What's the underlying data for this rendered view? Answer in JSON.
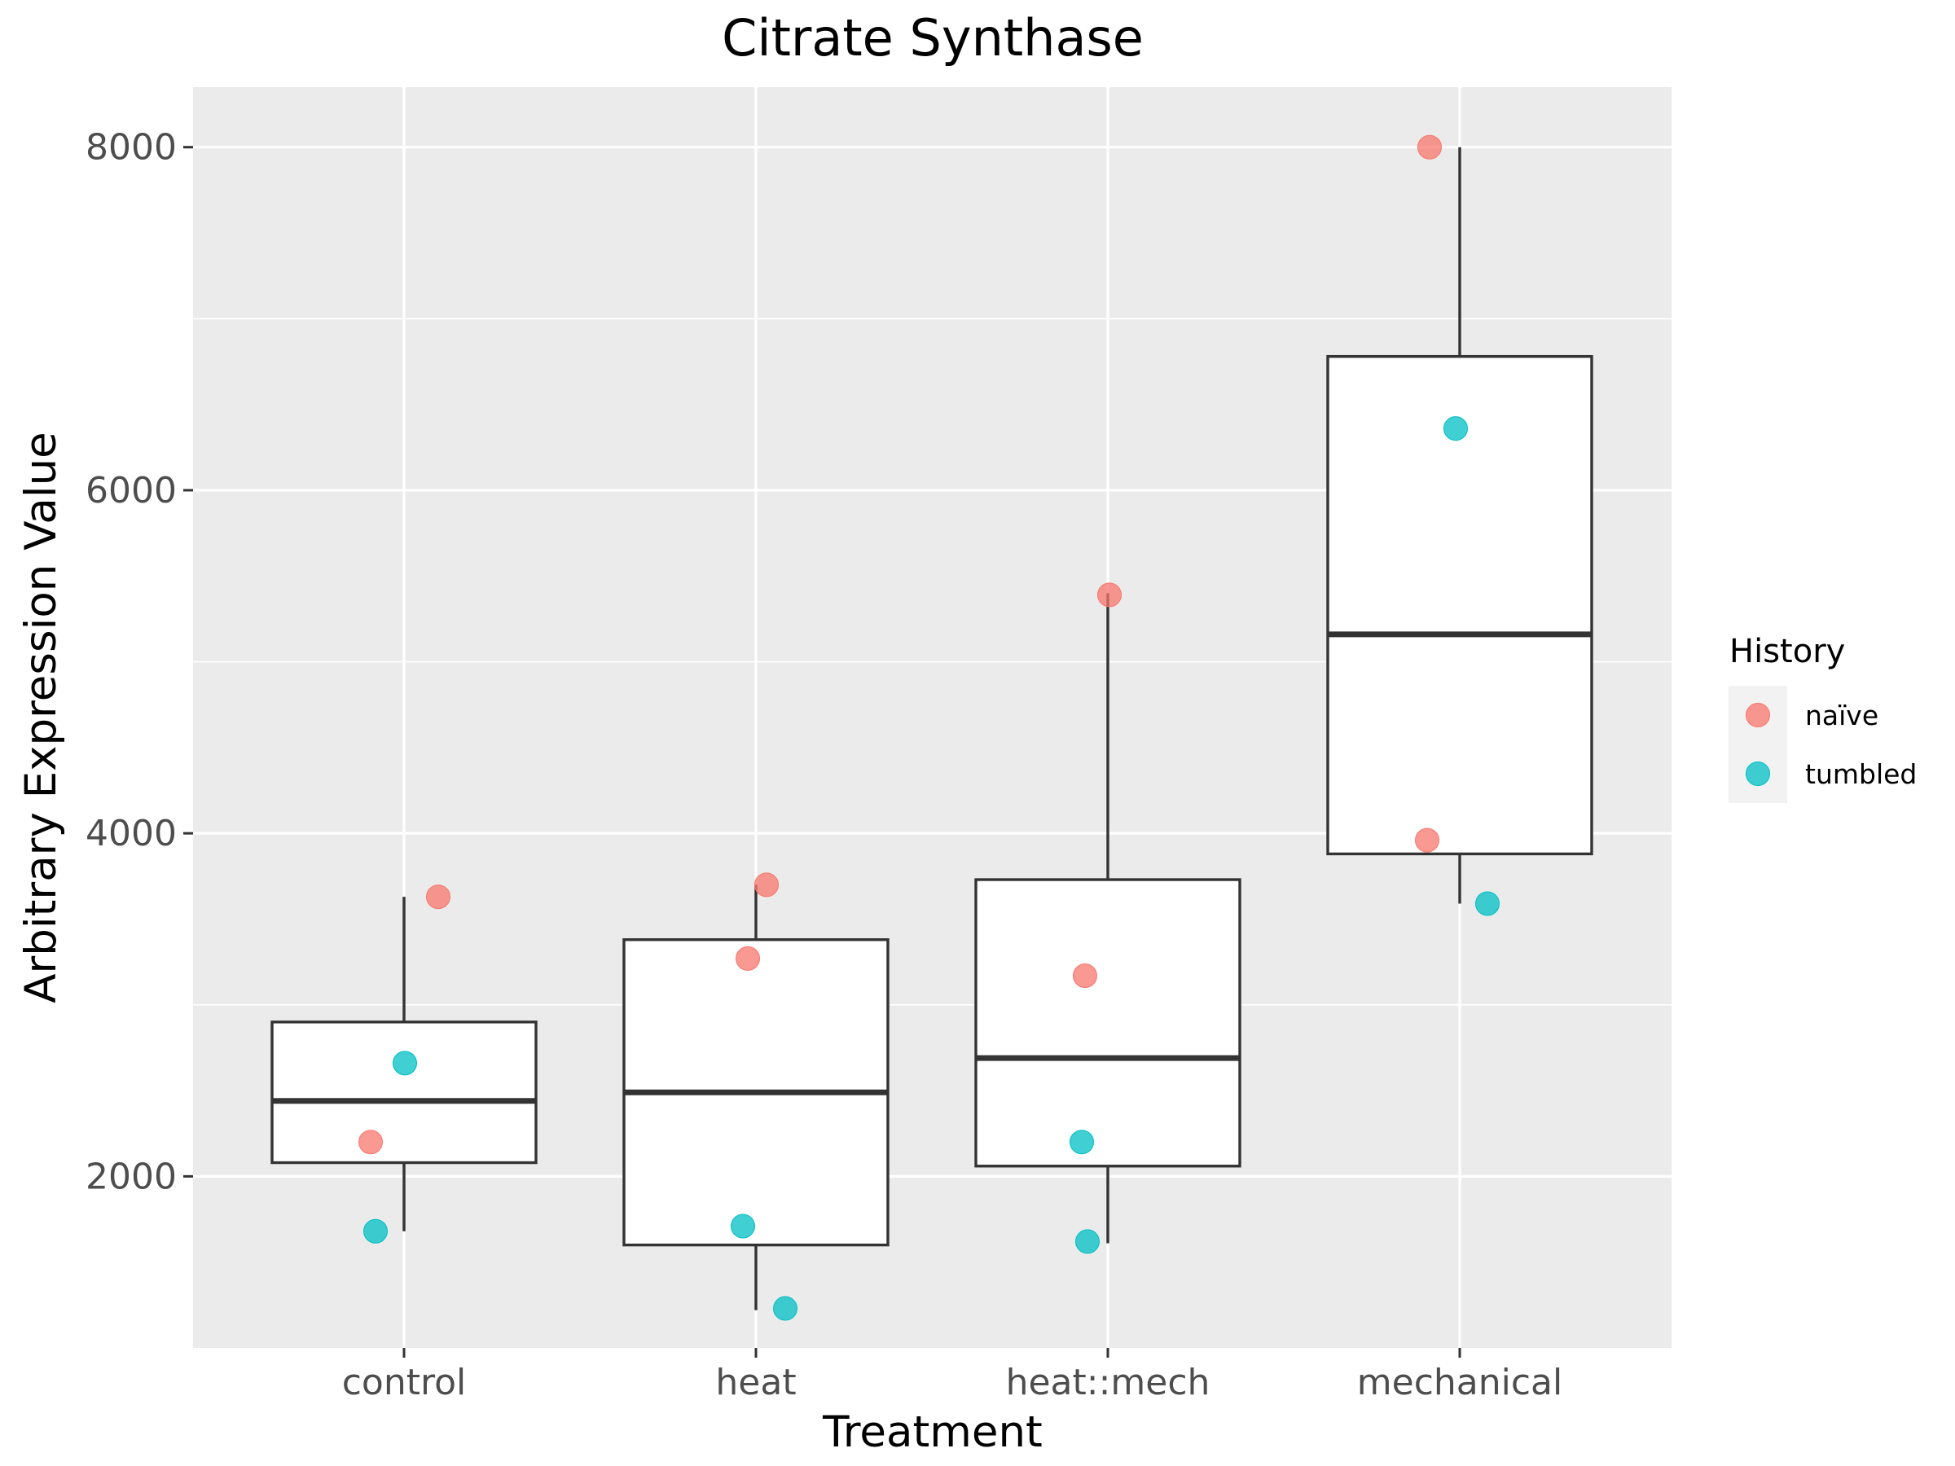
{
  "chart_data": {
    "type": "box",
    "title": "Citrate Synthase",
    "xlabel": "Treatment",
    "ylabel": "Arbitrary Expression Value",
    "categories": [
      "control",
      "heat",
      "heat::mech",
      "mechanical"
    ],
    "ylim": [
      1000,
      8350
    ],
    "yticks": [
      2000,
      4000,
      6000,
      8000
    ],
    "grid": true,
    "boxes": [
      {
        "category": "control",
        "whisker_low": 1680,
        "q1": 2080,
        "median": 2440,
        "q3": 2900,
        "whisker_high": 3630
      },
      {
        "category": "heat",
        "whisker_low": 1220,
        "q1": 1600,
        "median": 2490,
        "q3": 3380,
        "whisker_high": 3700
      },
      {
        "category": "heat::mech",
        "whisker_low": 1610,
        "q1": 2060,
        "median": 2690,
        "q3": 3730,
        "whisker_high": 5400
      },
      {
        "category": "mechanical",
        "whisker_low": 3590,
        "q1": 3880,
        "median": 5160,
        "q3": 6780,
        "whisker_high": 8000
      }
    ],
    "series": [
      {
        "name": "naïve",
        "color": "#F8766D",
        "points": [
          {
            "category": "control",
            "y": 3630
          },
          {
            "category": "control",
            "y": 2200
          },
          {
            "category": "heat",
            "y": 3700
          },
          {
            "category": "heat",
            "y": 3270
          },
          {
            "category": "heat::mech",
            "y": 5390
          },
          {
            "category": "heat::mech",
            "y": 3170
          },
          {
            "category": "mechanical",
            "y": 8000
          },
          {
            "category": "mechanical",
            "y": 3960
          }
        ]
      },
      {
        "name": "tumbled",
        "color": "#00BFC4",
        "points": [
          {
            "category": "control",
            "y": 2660
          },
          {
            "category": "control",
            "y": 1680
          },
          {
            "category": "heat",
            "y": 1710
          },
          {
            "category": "heat",
            "y": 1230
          },
          {
            "category": "heat::mech",
            "y": 2200
          },
          {
            "category": "heat::mech",
            "y": 1620
          },
          {
            "category": "mechanical",
            "y": 6360
          },
          {
            "category": "mechanical",
            "y": 3590
          }
        ]
      }
    ],
    "legend": {
      "title": "History",
      "position": "right"
    }
  }
}
